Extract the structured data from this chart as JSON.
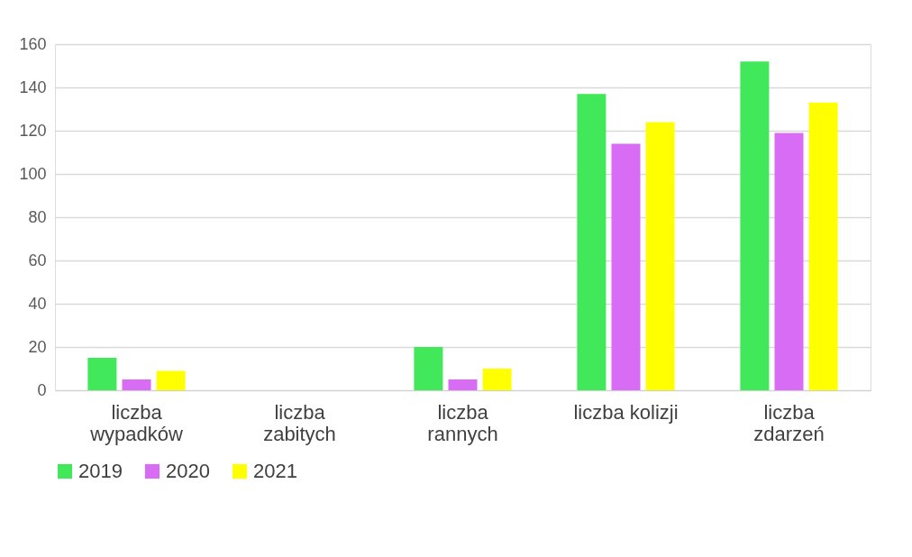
{
  "chart_data": {
    "type": "bar",
    "categories": [
      "liczba\nwypadków",
      "liczba\nzabitych",
      "liczba\nrannych",
      "liczba kolizji",
      "liczba\nzdarzeń"
    ],
    "series": [
      {
        "name": "2019",
        "color": "#41e85a",
        "values": [
          15,
          0,
          20,
          137,
          152
        ]
      },
      {
        "name": "2020",
        "color": "#d96cf5",
        "values": [
          5,
          0,
          5,
          114,
          119
        ]
      },
      {
        "name": "2021",
        "color": "#ffff00",
        "values": [
          9,
          0,
          10,
          124,
          133
        ]
      }
    ],
    "ylim": [
      0,
      160
    ],
    "yticks": [
      0,
      20,
      40,
      60,
      80,
      100,
      120,
      140,
      160
    ],
    "grid": "y",
    "legend": "bottom"
  }
}
